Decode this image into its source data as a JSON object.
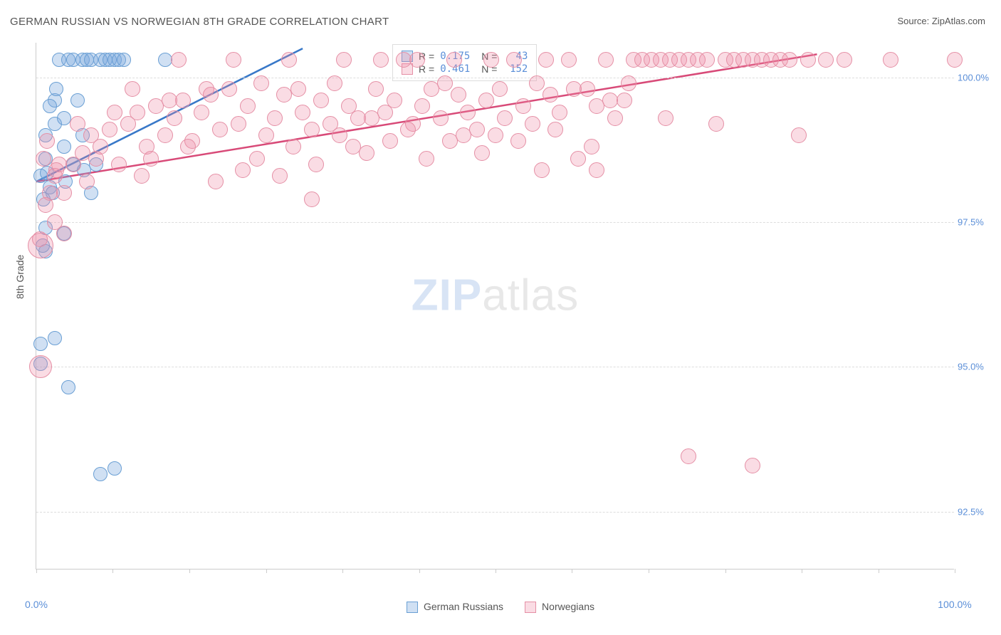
{
  "title": "GERMAN RUSSIAN VS NORWEGIAN 8TH GRADE CORRELATION CHART",
  "source_label": "Source: ZipAtlas.com",
  "y_axis_label": "8th Grade",
  "watermark_zip": "ZIP",
  "watermark_atlas": "atlas",
  "chart": {
    "type": "scatter",
    "background_color": "#ffffff",
    "grid_color": "#dddddd",
    "axis_line_color": "#cccccc",
    "tick_label_color": "#5b8fd8",
    "xlim": [
      0,
      100
    ],
    "ylim": [
      91.5,
      100.6
    ],
    "x_ticks": [
      0,
      8.3,
      16.7,
      25,
      33.3,
      41.7,
      50,
      58.3,
      66.7,
      75,
      83.3,
      91.7,
      100
    ],
    "x_tick_labels": {
      "0": "0.0%",
      "100": "100.0%"
    },
    "y_gridlines": [
      92.5,
      95.0,
      97.5,
      100.0
    ],
    "y_tick_labels": {
      "92.5": "92.5%",
      "95.0": "95.0%",
      "97.5": "97.5%",
      "100.0": "100.0%"
    },
    "series": [
      {
        "name": "German Russians",
        "fill_color": "rgba(120,165,220,0.35)",
        "stroke_color": "#6a9fd4",
        "trend_color": "#3878c8",
        "marker_r": 10,
        "R": "0.175",
        "N": "43",
        "trend": {
          "x1": 0,
          "y1": 98.2,
          "x2": 29,
          "y2": 100.5
        },
        "points": [
          [
            0.5,
            98.3
          ],
          [
            1,
            98.6
          ],
          [
            1,
            99.0
          ],
          [
            1,
            97.4
          ],
          [
            2,
            99.2
          ],
          [
            2,
            99.6
          ],
          [
            1.5,
            98.1
          ],
          [
            2.5,
            100.3
          ],
          [
            3,
            98.8
          ],
          [
            3,
            99.3
          ],
          [
            3,
            97.3
          ],
          [
            3.5,
            100.3
          ],
          [
            4,
            98.5
          ],
          [
            4,
            100.3
          ],
          [
            5,
            99.0
          ],
          [
            5,
            100.3
          ],
          [
            5.5,
            100.3
          ],
          [
            6,
            98.0
          ],
          [
            6,
            100.3
          ],
          [
            6.5,
            98.5
          ],
          [
            7,
            100.3
          ],
          [
            7.5,
            100.3
          ],
          [
            8,
            100.3
          ],
          [
            8.5,
            100.3
          ],
          [
            9,
            100.3
          ],
          [
            9.5,
            100.3
          ],
          [
            14,
            100.3
          ],
          [
            1,
            97.0
          ],
          [
            2,
            95.5
          ],
          [
            0.7,
            97.1
          ],
          [
            0.5,
            95.05
          ],
          [
            3.5,
            94.65
          ],
          [
            7,
            93.15
          ],
          [
            8.5,
            93.25
          ],
          [
            0.8,
            97.9
          ],
          [
            1.2,
            98.35
          ],
          [
            0.5,
            95.4
          ],
          [
            1.5,
            99.5
          ],
          [
            1.8,
            98.0
          ],
          [
            2.2,
            99.8
          ],
          [
            3.2,
            98.2
          ],
          [
            4.5,
            99.6
          ],
          [
            5.2,
            98.4
          ]
        ]
      },
      {
        "name": "Norwegians",
        "fill_color": "rgba(238,140,165,0.3)",
        "stroke_color": "#e58fa5",
        "trend_color": "#d84a78",
        "marker_r": 11,
        "R": "0.461",
        "N": "152",
        "trend": {
          "x1": 0,
          "y1": 98.2,
          "x2": 85,
          "y2": 100.4
        },
        "points": [
          [
            0.5,
            97.1,
            18
          ],
          [
            0.5,
            95.0,
            16
          ],
          [
            2,
            98.3
          ],
          [
            3,
            98.0
          ],
          [
            4,
            98.5
          ],
          [
            5,
            98.7
          ],
          [
            6,
            99.0
          ],
          [
            7,
            98.8
          ],
          [
            8,
            99.1
          ],
          [
            9,
            98.5
          ],
          [
            10,
            99.2
          ],
          [
            11,
            99.4
          ],
          [
            12,
            98.8
          ],
          [
            13,
            99.5
          ],
          [
            14,
            99.0
          ],
          [
            15,
            99.3
          ],
          [
            16,
            99.6
          ],
          [
            17,
            98.9
          ],
          [
            18,
            99.4
          ],
          [
            19,
            99.7
          ],
          [
            20,
            99.1
          ],
          [
            21,
            99.8
          ],
          [
            22,
            99.2
          ],
          [
            23,
            99.5
          ],
          [
            24,
            98.6
          ],
          [
            25,
            99.0
          ],
          [
            26,
            99.3
          ],
          [
            27,
            99.7
          ],
          [
            28,
            98.8
          ],
          [
            29,
            99.4
          ],
          [
            30,
            99.1
          ],
          [
            31,
            99.6
          ],
          [
            30,
            97.9
          ],
          [
            32,
            99.2
          ],
          [
            33,
            99.0
          ],
          [
            34,
            99.5
          ],
          [
            35,
            99.3
          ],
          [
            36,
            98.7
          ],
          [
            37,
            99.8
          ],
          [
            38,
            99.4
          ],
          [
            39,
            99.6
          ],
          [
            40,
            100.3
          ],
          [
            41,
            99.2
          ],
          [
            42,
            99.5
          ],
          [
            43,
            99.8
          ],
          [
            44,
            99.3
          ],
          [
            45,
            98.9
          ],
          [
            46,
            99.7
          ],
          [
            47,
            99.4
          ],
          [
            48,
            99.1
          ],
          [
            49,
            99.6
          ],
          [
            50,
            99.0
          ],
          [
            51,
            99.3
          ],
          [
            52,
            100.3
          ],
          [
            53,
            99.5
          ],
          [
            54,
            99.2
          ],
          [
            55,
            98.4
          ],
          [
            56,
            99.7
          ],
          [
            57,
            99.4
          ],
          [
            58,
            100.3
          ],
          [
            59,
            98.6
          ],
          [
            60,
            99.8
          ],
          [
            61,
            99.5
          ],
          [
            61,
            98.4
          ],
          [
            62,
            100.3
          ],
          [
            63,
            99.3
          ],
          [
            64,
            99.6
          ],
          [
            65,
            100.3
          ],
          [
            66,
            100.3
          ],
          [
            67,
            100.3
          ],
          [
            68,
            100.3
          ],
          [
            69,
            100.3
          ],
          [
            70,
            100.3
          ],
          [
            71,
            100.3
          ],
          [
            72,
            100.3
          ],
          [
            73,
            100.3
          ],
          [
            74,
            99.2
          ],
          [
            75,
            100.3
          ],
          [
            76,
            100.3
          ],
          [
            77,
            100.3
          ],
          [
            78,
            100.3
          ],
          [
            79,
            100.3
          ],
          [
            80,
            100.3
          ],
          [
            81,
            100.3
          ],
          [
            82,
            100.3
          ],
          [
            83,
            99.0
          ],
          [
            84,
            100.3
          ],
          [
            86,
            100.3
          ],
          [
            88,
            100.3
          ],
          [
            93,
            100.3
          ],
          [
            100,
            100.3
          ],
          [
            0.8,
            98.6
          ],
          [
            1.2,
            98.9
          ],
          [
            2.5,
            98.5
          ],
          [
            4.5,
            99.2
          ],
          [
            6.5,
            98.6
          ],
          [
            8.5,
            99.4
          ],
          [
            10.5,
            99.8
          ],
          [
            12.5,
            98.6
          ],
          [
            14.5,
            99.6
          ],
          [
            16.5,
            98.8
          ],
          [
            18.5,
            99.8
          ],
          [
            22.5,
            98.4
          ],
          [
            24.5,
            99.9
          ],
          [
            26.5,
            98.3
          ],
          [
            28.5,
            99.8
          ],
          [
            30.5,
            98.5
          ],
          [
            32.5,
            99.9
          ],
          [
            34.5,
            98.8
          ],
          [
            36.5,
            99.3
          ],
          [
            38.5,
            98.9
          ],
          [
            40.5,
            99.1
          ],
          [
            42.5,
            98.6
          ],
          [
            44.5,
            99.9
          ],
          [
            46.5,
            99.0
          ],
          [
            48.5,
            98.7
          ],
          [
            50.5,
            99.8
          ],
          [
            52.5,
            98.9
          ],
          [
            54.5,
            99.9
          ],
          [
            56.5,
            99.1
          ],
          [
            58.5,
            99.8
          ],
          [
            60.5,
            98.8
          ],
          [
            62.5,
            99.6
          ],
          [
            64.5,
            99.9
          ],
          [
            68.5,
            99.3
          ],
          [
            71,
            93.45
          ],
          [
            78,
            93.3
          ],
          [
            1,
            97.8
          ],
          [
            2,
            97.5
          ],
          [
            3,
            97.3
          ],
          [
            1.5,
            98.0
          ],
          [
            2.2,
            98.4
          ],
          [
            0.4,
            97.2
          ],
          [
            5.5,
            98.2
          ],
          [
            11.5,
            98.3
          ],
          [
            15.5,
            100.3
          ],
          [
            19.5,
            98.2
          ],
          [
            33.5,
            100.3
          ],
          [
            37.5,
            100.3
          ],
          [
            45.5,
            100.3
          ],
          [
            49.5,
            100.3
          ],
          [
            55.5,
            100.3
          ],
          [
            27.5,
            100.3
          ],
          [
            41.5,
            100.3
          ],
          [
            21.5,
            100.3
          ]
        ]
      }
    ]
  },
  "legend_top": {
    "rows": [
      {
        "series_idx": 0,
        "r_label": "R =",
        "n_label": "N ="
      },
      {
        "series_idx": 1,
        "r_label": "R =",
        "n_label": "N ="
      }
    ]
  },
  "legend_bottom": {
    "items": [
      {
        "series_idx": 0
      },
      {
        "series_idx": 1
      }
    ]
  }
}
